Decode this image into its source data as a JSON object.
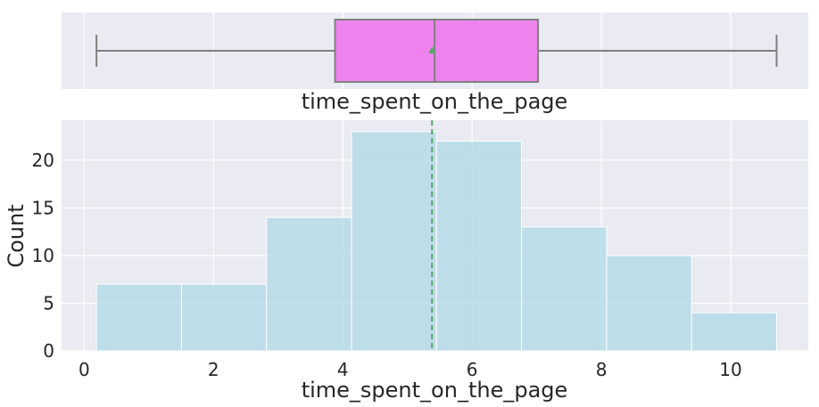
{
  "chart_data": [
    {
      "type": "box",
      "xlabel": "time_spent_on_the_page",
      "min": 0.19,
      "q1": 3.88,
      "median": 5.42,
      "q3": 7.02,
      "max": 10.71,
      "mean": 5.38,
      "xlim": [
        -0.35,
        11.2
      ],
      "box_color": "#ee82ee",
      "line_color": "#808080",
      "mean_color": "#55a868",
      "grid": true
    },
    {
      "type": "bar",
      "xlabel": "time_spent_on_the_page",
      "ylabel": "Count",
      "bins": [
        {
          "start": 0.19,
          "end": 1.505,
          "count": 7
        },
        {
          "start": 1.505,
          "end": 2.82,
          "count": 7
        },
        {
          "start": 2.82,
          "end": 4.135,
          "count": 14
        },
        {
          "start": 4.135,
          "end": 5.45,
          "count": 23
        },
        {
          "start": 5.45,
          "end": 6.765,
          "count": 22
        },
        {
          "start": 6.765,
          "end": 8.08,
          "count": 13
        },
        {
          "start": 8.08,
          "end": 9.395,
          "count": 10
        },
        {
          "start": 9.395,
          "end": 10.71,
          "count": 4
        }
      ],
      "mean_line": 5.38,
      "xticks": [
        "0",
        "2",
        "4",
        "6",
        "8",
        "10"
      ],
      "yticks": [
        "0",
        "5",
        "10",
        "15",
        "20"
      ],
      "xlim": [
        -0.35,
        11.2
      ],
      "ylim": [
        0,
        24.2
      ],
      "bar_color": "#add8e6",
      "mean_line_color": "#55a868",
      "grid": true
    }
  ]
}
